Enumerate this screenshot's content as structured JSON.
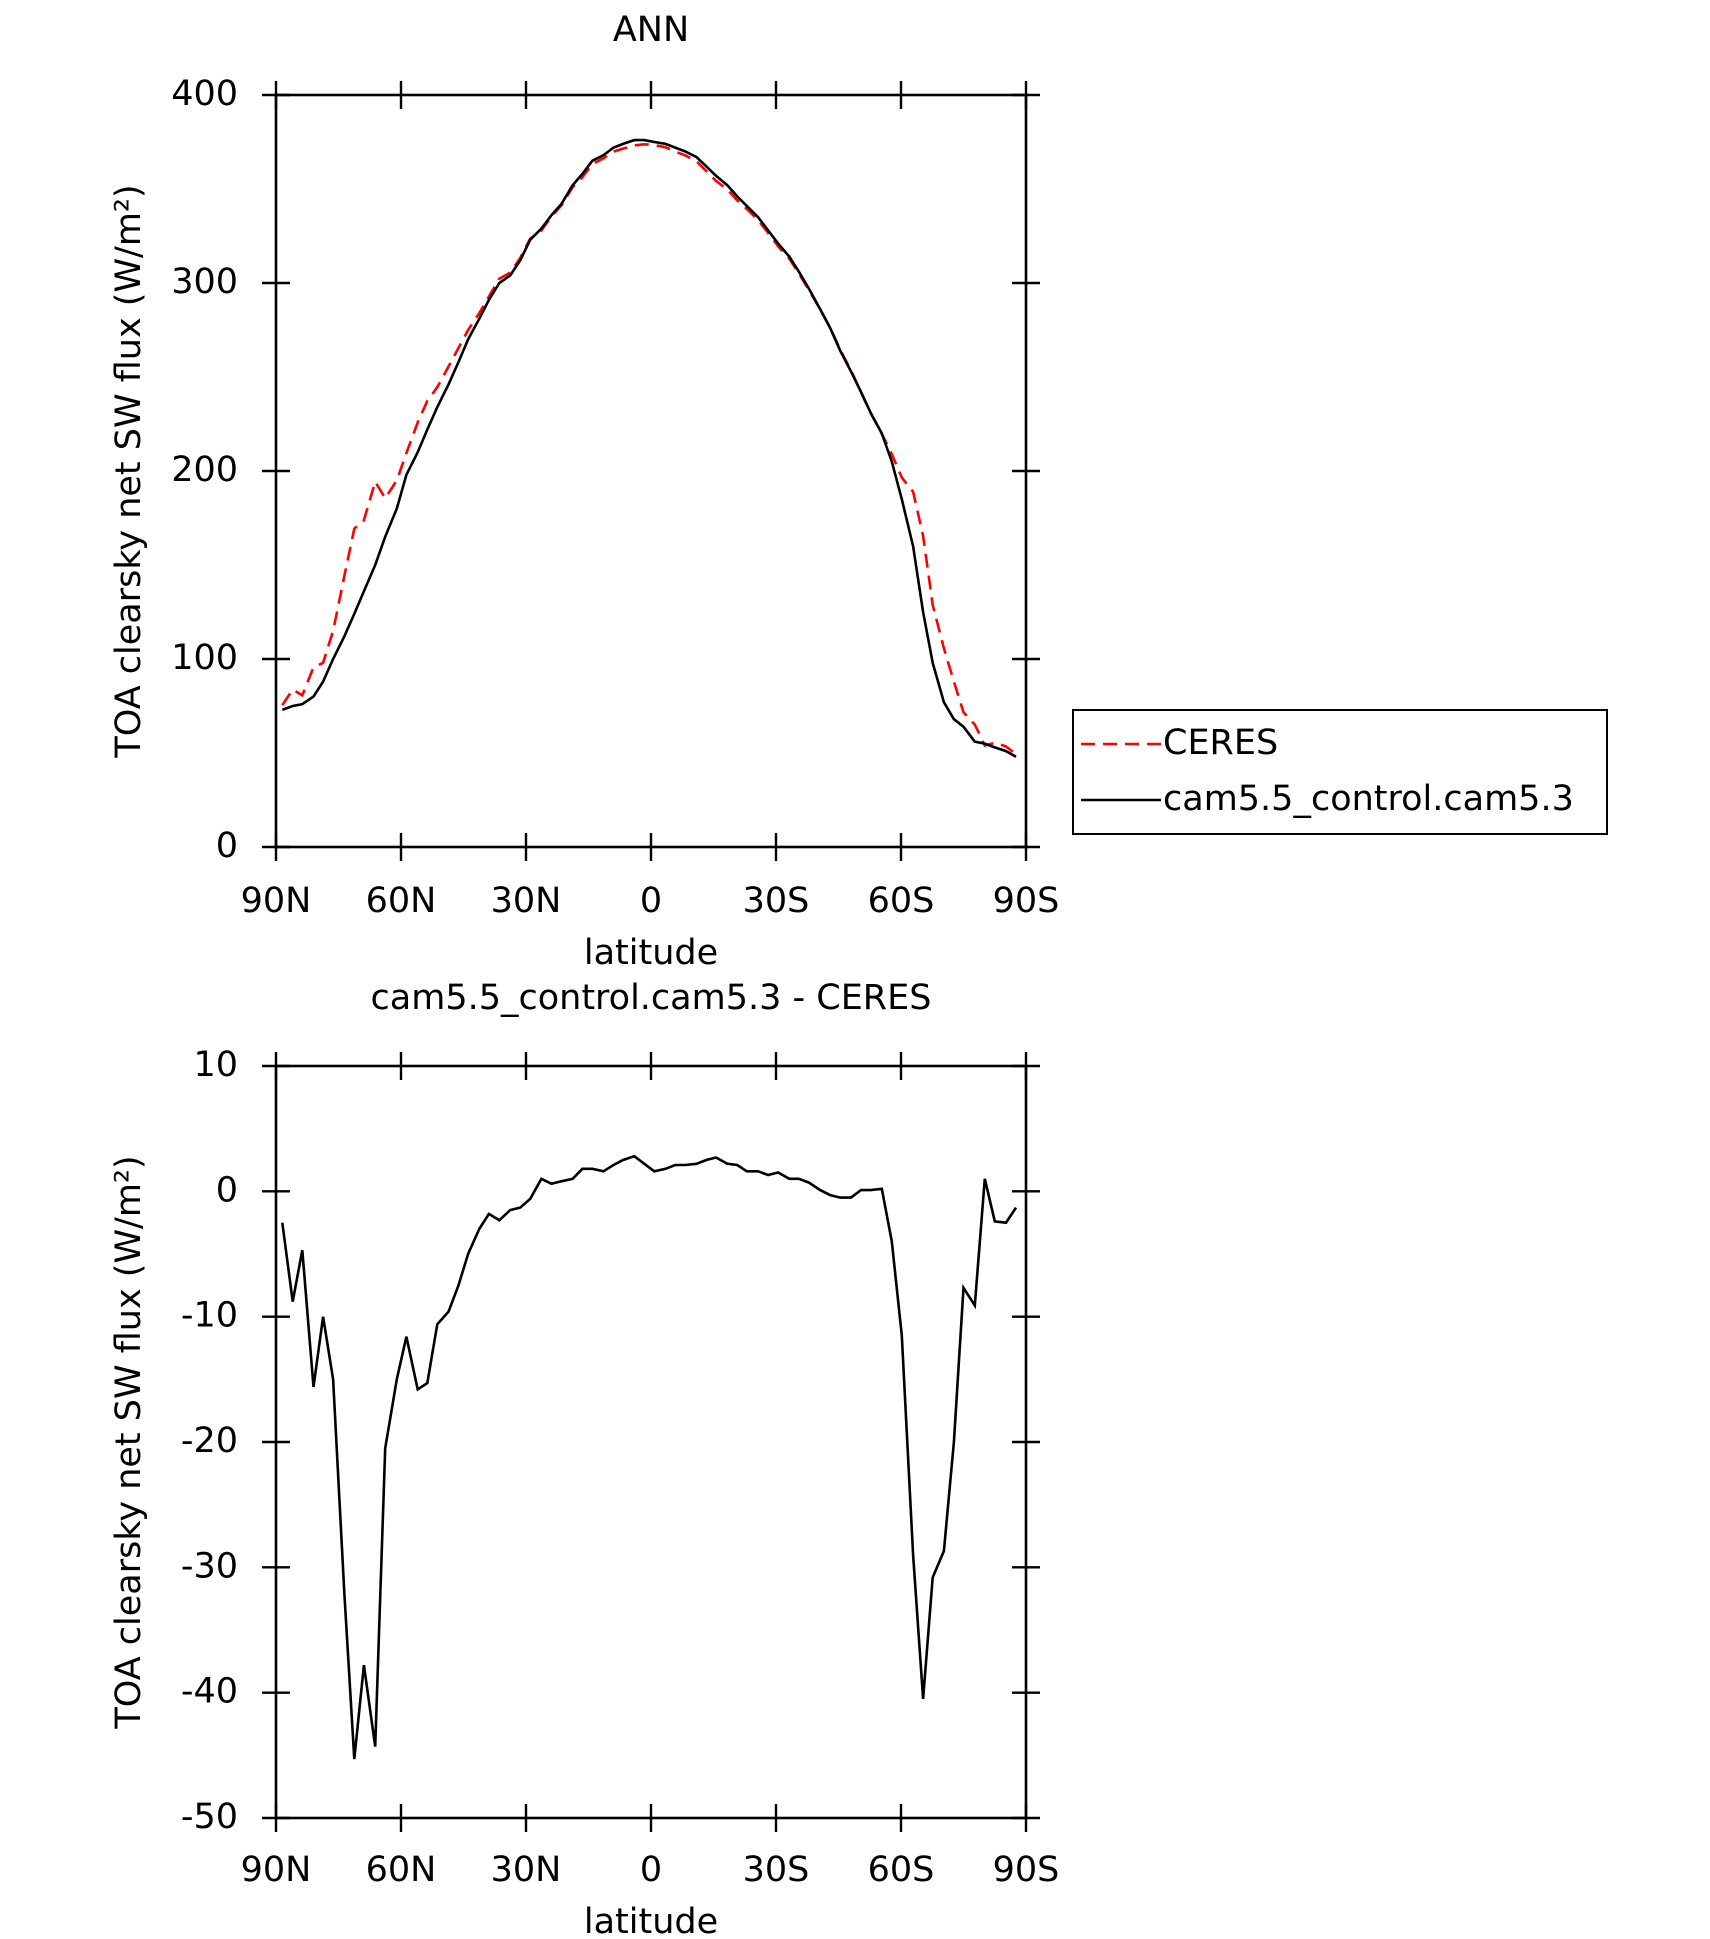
{
  "chart_data": [
    {
      "type": "line",
      "title": "ANN",
      "x_label": "latitude",
      "y_label": "TOA clearsky net SW flux (W/m²)",
      "x": [
        88.5,
        86,
        83.7,
        81,
        78.7,
        76.3,
        73.6,
        71.2,
        68.9,
        66.2,
        63.8,
        61,
        58.7,
        56,
        53.7,
        51.3,
        48.6,
        46.2,
        43.9,
        41.2,
        38.9,
        36.4,
        33.8,
        31.4,
        29,
        26.3,
        23.9,
        21.5,
        18.8,
        16.5,
        14.1,
        11.4,
        9,
        6.7,
        4,
        1.6,
        -0.8,
        -3.5,
        -5.8,
        -8.2,
        -10.9,
        -13.3,
        -15.6,
        -18.3,
        -20.7,
        -23,
        -25.7,
        -28.1,
        -30.5,
        -33.2,
        -35.5,
        -37.9,
        -40.6,
        -43,
        -45.4,
        -48,
        -50.4,
        -52.7,
        -55.4,
        -57.8,
        -60.2,
        -62.9,
        -65.3,
        -67.6,
        -70.3,
        -72.7,
        -75,
        -77.7,
        -80.1,
        -82.5,
        -85.2,
        -87.6
      ],
      "series": [
        {
          "name": "CERES",
          "color": "#ff0000",
          "dashed": true,
          "values": [
            75.5,
            83.8,
            80.7,
            95.6,
            98,
            115,
            144,
            169.3,
            173.8,
            194.3,
            185.5,
            195,
            209.6,
            225.8,
            237.3,
            244.6,
            255.6,
            265.5,
            275,
            284,
            292.8,
            302.3,
            305.5,
            313.3,
            323.6,
            328,
            335.4,
            341.2,
            351,
            356.2,
            363.2,
            366.4,
            369.9,
            371.5,
            373.2,
            373.8,
            373.4,
            372.2,
            369.9,
            367.9,
            364.8,
            359.5,
            354.3,
            349.8,
            343.9,
            339.4,
            333.4,
            326.7,
            319.5,
            313,
            305,
            296.3,
            285.9,
            276.3,
            264.5,
            253.5,
            241.9,
            230.9,
            219.8,
            209,
            196.5,
            189,
            165.5,
            128.8,
            105.7,
            88,
            71.7,
            65.1,
            54,
            55.4,
            53.5,
            49.3
          ]
        },
        {
          "name": "cam5.5_control.cam5.3",
          "color": "#000000",
          "dashed": false,
          "values": [
            73,
            75,
            76,
            80,
            88,
            100,
            112,
            124,
            136,
            150,
            165,
            180,
            198,
            210,
            222,
            234,
            246,
            258,
            270,
            281,
            291,
            300,
            304,
            312,
            323,
            329,
            336,
            342,
            352,
            358,
            365,
            368,
            372,
            374,
            376,
            376,
            375,
            374,
            372,
            370,
            367,
            362,
            357,
            352,
            346,
            341,
            335,
            328,
            321,
            314,
            306,
            297,
            286,
            276,
            264,
            253,
            242,
            231,
            220,
            205,
            185,
            160,
            125,
            98,
            77,
            68,
            64,
            56,
            55,
            53,
            51,
            48
          ]
        }
      ],
      "xlim": [
        90,
        -90
      ],
      "xticks": [
        {
          "value": 90,
          "label": "90N"
        },
        {
          "value": 60,
          "label": "60N"
        },
        {
          "value": 30,
          "label": "30N"
        },
        0,
        {
          "value": -30,
          "label": "30S"
        },
        {
          "value": -60,
          "label": "60S"
        },
        {
          "value": -90,
          "label": "90S"
        }
      ],
      "ylim": [
        0,
        400
      ],
      "yticks": [
        0,
        100,
        200,
        300,
        400
      ],
      "legend": "right"
    },
    {
      "type": "line",
      "title": "cam5.5_control.cam5.3 - CERES",
      "x_label": "latitude",
      "y_label": "TOA clearsky net SW flux (W/m²)",
      "x": [
        88.5,
        86,
        83.7,
        81,
        78.7,
        76.3,
        73.6,
        71.2,
        68.9,
        66.2,
        63.8,
        61,
        58.7,
        56,
        53.7,
        51.3,
        48.6,
        46.2,
        43.9,
        41.2,
        38.9,
        36.4,
        33.8,
        31.4,
        29,
        26.3,
        23.9,
        21.5,
        18.8,
        16.5,
        14.1,
        11.4,
        9,
        6.7,
        4,
        1.6,
        -0.8,
        -3.5,
        -5.8,
        -8.2,
        -10.9,
        -13.3,
        -15.6,
        -18.3,
        -20.7,
        -23,
        -25.7,
        -28.1,
        -30.5,
        -33.2,
        -35.5,
        -37.9,
        -40.6,
        -43,
        -45.4,
        -48,
        -50.4,
        -52.7,
        -55.4,
        -57.8,
        -60.2,
        -62.9,
        -65.3,
        -67.6,
        -70.3,
        -72.7,
        -75,
        -77.7,
        -80.1,
        -82.5,
        -85.2,
        -87.6
      ],
      "color": "#000000",
      "values": [
        -2.5,
        -8.8,
        -4.7,
        -15.6,
        -10,
        -15,
        -32,
        -45.3,
        -37.8,
        -44.3,
        -20.5,
        -15,
        -11.6,
        -15.8,
        -15.3,
        -10.6,
        -9.6,
        -7.5,
        -5,
        -3,
        -1.8,
        -2.3,
        -1.5,
        -1.3,
        -0.6,
        1,
        0.6,
        0.8,
        1,
        1.8,
        1.8,
        1.6,
        2.1,
        2.5,
        2.8,
        2.2,
        1.6,
        1.8,
        2.1,
        2.1,
        2.2,
        2.5,
        2.7,
        2.2,
        2.1,
        1.6,
        1.6,
        1.3,
        1.5,
        1,
        1,
        0.7,
        0.1,
        -0.3,
        -0.5,
        -0.5,
        0.1,
        0.1,
        0.2,
        -4,
        -11.5,
        -29,
        -40.5,
        -30.8,
        -28.7,
        -20,
        -7.7,
        -9.1,
        1,
        -2.4,
        -2.5,
        -1.3
      ],
      "xlim": [
        90,
        -90
      ],
      "xticks": [
        {
          "value": 90,
          "label": "90N"
        },
        {
          "value": 60,
          "label": "60N"
        },
        {
          "value": 30,
          "label": "30N"
        },
        0,
        {
          "value": -30,
          "label": "30S"
        },
        {
          "value": -60,
          "label": "60S"
        },
        {
          "value": -90,
          "label": "90S"
        }
      ],
      "ylim": [
        -50,
        10
      ],
      "yticks": [
        -50,
        -40,
        -30,
        -20,
        -10,
        0,
        10
      ]
    }
  ]
}
